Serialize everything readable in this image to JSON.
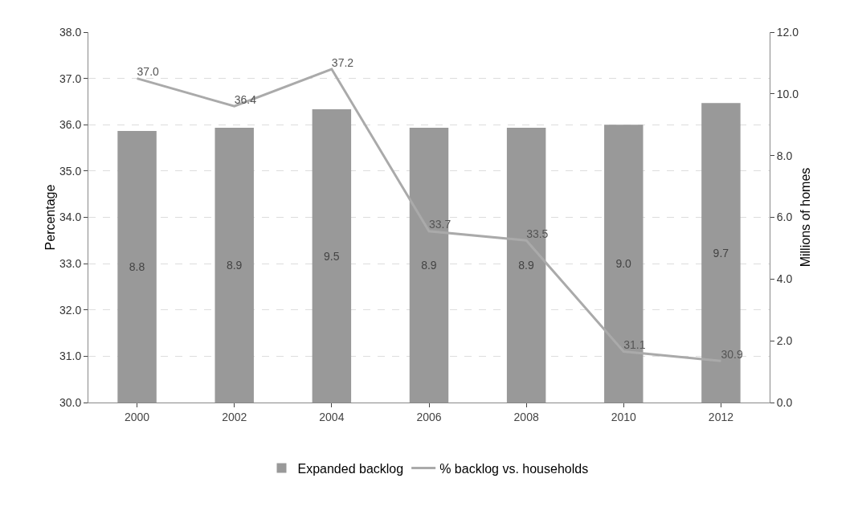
{
  "chart_data": {
    "type": "bar",
    "ylabel": "Percentage",
    "y2label": "Millions of homes",
    "categories": [
      "2000",
      "2002",
      "2004",
      "2006",
      "2008",
      "2010",
      "2012"
    ],
    "series": [
      {
        "name": "Expanded backlog",
        "axis": "y2",
        "color": "#999999",
        "values": [
          8.8,
          8.9,
          9.5,
          8.9,
          8.9,
          9.0,
          9.7
        ],
        "value_labels": [
          "8.8",
          "8.9",
          "9.5",
          "8.9",
          "8.9",
          "9.0",
          "9.7"
        ]
      },
      {
        "name": "% backlog vs. households",
        "type": "line",
        "color": "#aaaaaa",
        "values": [
          37.0,
          36.4,
          37.2,
          33.7,
          33.5,
          31.1,
          30.9
        ],
        "value_labels": [
          "37.0",
          "36.4",
          "37.2",
          "33.7",
          "33.5",
          "31.1",
          "30.9"
        ]
      }
    ],
    "ylim": [
      30,
      38
    ],
    "yticks": [
      {
        "value": 30,
        "label": "30.0"
      },
      {
        "value": 31,
        "label": "31.0"
      },
      {
        "value": 32,
        "label": "32.0"
      },
      {
        "value": 33,
        "label": "33.0"
      },
      {
        "value": 34,
        "label": "34.0"
      },
      {
        "value": 35,
        "label": "35.0"
      },
      {
        "value": 36,
        "label": "36.0"
      },
      {
        "value": 37,
        "label": "37.0"
      },
      {
        "value": 38,
        "label": "38.0"
      }
    ],
    "y2lim": [
      0,
      12
    ],
    "y2ticks": [
      {
        "value": 0,
        "label": "0.0"
      },
      {
        "value": 2,
        "label": "2.0"
      },
      {
        "value": 4,
        "label": "4.0"
      },
      {
        "value": 6,
        "label": "6.0"
      },
      {
        "value": 8,
        "label": "8.0"
      },
      {
        "value": 10,
        "label": "10.0"
      },
      {
        "value": 12,
        "label": "12.0"
      }
    ],
    "grid": "y",
    "legend": "bottom",
    "marker": "none",
    "line_style": "solid"
  }
}
